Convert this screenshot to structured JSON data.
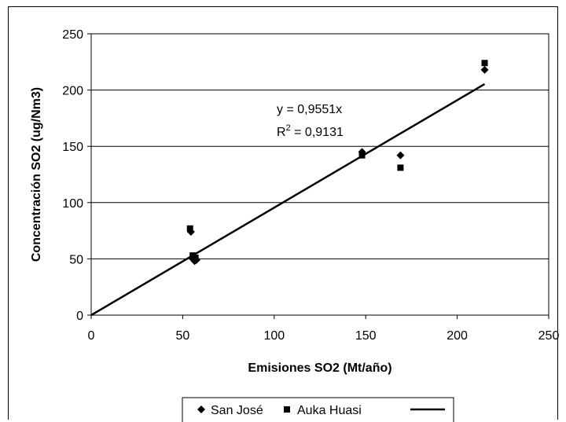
{
  "chart_data": {
    "type": "scatter",
    "title": "",
    "xlabel": "Emisiones SO2 (Mt/año)",
    "ylabel": "Concentración SO2 (ug/Nm3)",
    "xlim": [
      0,
      250
    ],
    "ylim": [
      0,
      250
    ],
    "xticks": [
      "0",
      "50",
      "100",
      "150",
      "200",
      "250"
    ],
    "yticks": [
      "0",
      "50",
      "100",
      "150",
      "200",
      "250"
    ],
    "grid": "horizontal",
    "legend_position": "bottom",
    "series": [
      {
        "name": "San José",
        "marker": "diamond",
        "color": "#000000",
        "points": [
          [
            54.5,
            74
          ],
          [
            55.5,
            50
          ],
          [
            56.5,
            48
          ],
          [
            57.5,
            49
          ],
          [
            148,
            145
          ],
          [
            169,
            142
          ],
          [
            215,
            218
          ]
        ]
      },
      {
        "name": "Auka Huasi",
        "marker": "square",
        "color": "#000000",
        "points": [
          [
            54,
            77
          ],
          [
            55.5,
            53
          ],
          [
            57,
            51
          ],
          [
            148,
            142
          ],
          [
            169,
            131
          ],
          [
            215,
            224
          ]
        ]
      }
    ],
    "trendline": {
      "slope": 0.9551,
      "x_range": [
        0,
        215
      ],
      "equation": "y = 0,9551x",
      "r2_prefix": "R",
      "r2_sup": "2",
      "r2_value": " = 0,9131"
    }
  }
}
